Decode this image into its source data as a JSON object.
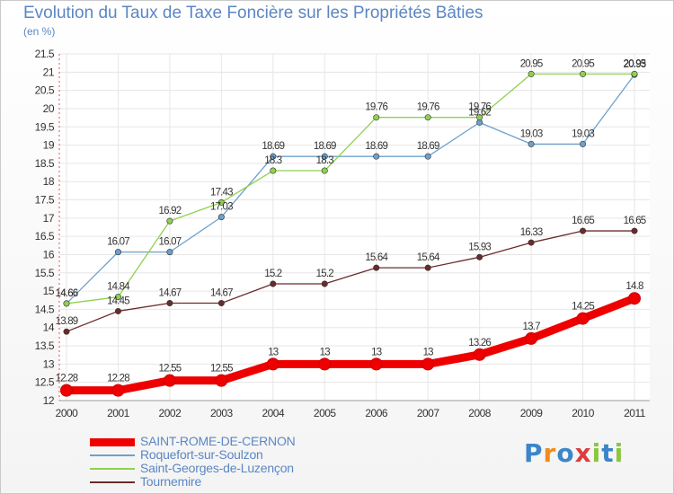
{
  "title": "Evolution du Taux de Taxe Foncière sur les Propriétés Bâties",
  "unit_label": "(en %)",
  "logo": {
    "text": "Proxiti",
    "colors": [
      "#3b86c8",
      "#f08c1e",
      "#3b86c8",
      "#e03c3c",
      "#8cc63e",
      "#3b86c8",
      "#8cc63e"
    ]
  },
  "chart_data": {
    "type": "line",
    "title": "Evolution du Taux de Taxe Foncière sur les Propriétés Bâties",
    "ylabel": "(en %)",
    "xlabel": "",
    "categories": [
      "2000",
      "2001",
      "2002",
      "2003",
      "2004",
      "2005",
      "2006",
      "2007",
      "2008",
      "2009",
      "2010",
      "2011"
    ],
    "ylim": [
      12,
      21.5
    ],
    "yticks": [
      "12",
      "12.5",
      "13",
      "13.5",
      "14",
      "14.5",
      "15",
      "15.5",
      "16",
      "16.5",
      "17",
      "17.5",
      "18",
      "18.5",
      "19",
      "19.5",
      "20",
      "20.5",
      "21",
      "21.5"
    ],
    "grid": true,
    "legend_position": "bottom-left",
    "series": [
      {
        "name": "SAINT-ROME-DE-CERNON",
        "color": "#ee0000",
        "width": 9,
        "values": [
          12.28,
          12.28,
          12.55,
          12.55,
          13,
          13,
          13,
          13,
          13.26,
          13.7,
          14.25,
          14.8
        ],
        "labels": [
          "12.28",
          "12.28",
          "12.55",
          "12.55",
          "13",
          "13",
          "13",
          "13",
          "13.26",
          "13.7",
          "14.25",
          "14.8"
        ]
      },
      {
        "name": "Roquefort-sur-Soulzon",
        "color": "#6fa0cc",
        "width": 1.3,
        "values": [
          14.66,
          16.07,
          16.07,
          17.03,
          18.69,
          18.69,
          18.69,
          18.69,
          19.62,
          19.03,
          19.03,
          20.93
        ],
        "labels": [
          "14.66",
          "16.07",
          "16.07",
          "17.03",
          "18.69",
          "18.69",
          "18.69",
          "18.69",
          "19.62",
          "19.03",
          "19.03",
          "20.93"
        ]
      },
      {
        "name": "Saint-Georges-de-Luzençon",
        "color": "#8fd14f",
        "width": 1.3,
        "values": [
          14.66,
          14.84,
          16.92,
          17.43,
          18.3,
          18.3,
          19.76,
          19.76,
          19.76,
          20.95,
          20.95,
          20.95
        ],
        "labels": [
          "14.66",
          "14.84",
          "16.92",
          "17.43",
          "18.3",
          "18.3",
          "19.76",
          "19.76",
          "19.76",
          "20.95",
          "20.95",
          "20.95"
        ]
      },
      {
        "name": "Tournemire",
        "color": "#6b2b2b",
        "width": 1.3,
        "values": [
          13.89,
          14.45,
          14.67,
          14.67,
          15.2,
          15.2,
          15.64,
          15.64,
          15.93,
          16.33,
          16.65,
          16.65
        ],
        "labels": [
          "13.89",
          "14.45",
          "14.67",
          "14.67",
          "15.2",
          "15.2",
          "15.64",
          "15.64",
          "15.93",
          "16.33",
          "16.65",
          "16.65"
        ]
      }
    ]
  }
}
